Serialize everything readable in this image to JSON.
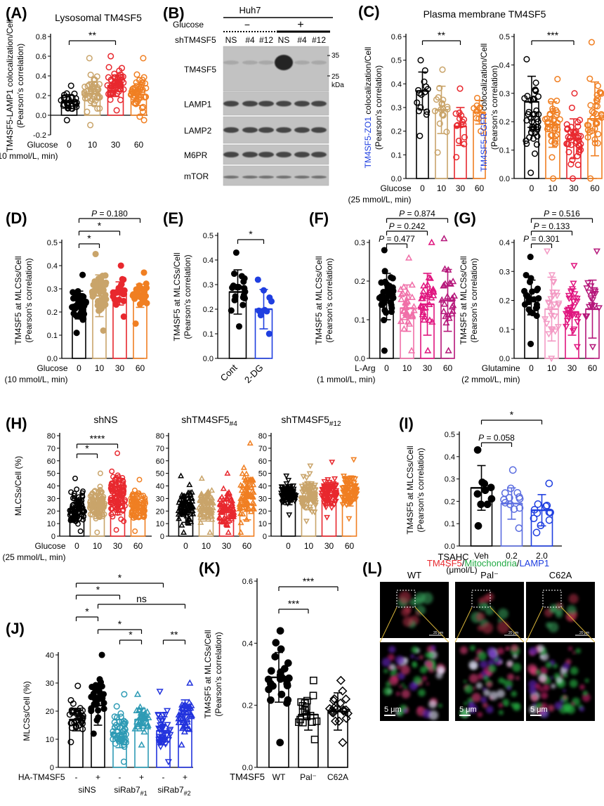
{
  "chart_data": [
    {
      "id": "A",
      "type": "bar",
      "panel_label": "(A)",
      "title": "Lysosomal TM4SF5",
      "ylabel": [
        "TM4SF5-LAMP1 colocalization/Cell",
        "(Pearson's correlation)"
      ],
      "ylim": [
        -0.2,
        0.8
      ],
      "yticks": [
        -0.2,
        0.0,
        0.2,
        0.4,
        0.6,
        0.8
      ],
      "xprefix": [
        "Glucose",
        "(10 mmol/L, min)"
      ],
      "categories": [
        "0",
        "10",
        "30",
        "60"
      ],
      "values": [
        0.14,
        0.22,
        0.3,
        0.21
      ],
      "errors": [
        0.07,
        0.12,
        0.11,
        0.11
      ],
      "colors": [
        "#000000",
        "#c9a46a",
        "#e8282e",
        "#f07f22"
      ],
      "markers": [
        "circle",
        "circle",
        "circle",
        "circle"
      ],
      "fill": "none",
      "point_min": [
        -0.05,
        -0.1,
        0.05,
        -0.05
      ],
      "point_max": [
        0.3,
        0.58,
        0.6,
        0.58
      ],
      "n_points": [
        30,
        45,
        55,
        45
      ],
      "sig": [
        {
          "a": 1,
          "b": 3,
          "text": "**"
        }
      ]
    },
    {
      "id": "C1",
      "type": "bar",
      "panel_label": "(C)",
      "title": "Plasma membrane TM4SF5",
      "ylabel_color": "TM4SF5-ZO1",
      "ylabel_rest": " colocalization/Cell",
      "ylabel2": "(Pearson's correlation)",
      "ylim": [
        0.0,
        0.6
      ],
      "yticks": [
        0.0,
        0.1,
        0.2,
        0.3,
        0.4,
        0.5,
        0.6
      ],
      "xprefix": [
        "Glucose",
        "(25 mmol/L, min)"
      ],
      "categories": [
        "0",
        "10",
        "30",
        "60"
      ],
      "values": [
        0.37,
        0.29,
        0.22,
        0.28
      ],
      "errors": [
        0.08,
        0.1,
        0.08,
        0.05
      ],
      "colors": [
        "#000000",
        "#c9a46a",
        "#e8282e",
        "#f07f22"
      ],
      "markers": [
        "circle",
        "circle",
        "circle",
        "circle"
      ],
      "fill": "none",
      "point_min": [
        0.18,
        0.11,
        0.09,
        0.2
      ],
      "point_max": [
        0.5,
        0.46,
        0.38,
        0.34
      ],
      "n_points": [
        15,
        18,
        15,
        10
      ],
      "sig": [
        {
          "a": 1,
          "b": 3,
          "text": "**"
        }
      ]
    },
    {
      "id": "C2",
      "type": "bar",
      "ylabel_color": "TM4SF5-EGFR",
      "ylabel_rest": " colocalization/Cell",
      "ylabel2": "(Pearson's correlation)",
      "ylim": [
        0.0,
        0.5
      ],
      "yticks": [
        0.0,
        0.1,
        0.2,
        0.3,
        0.4,
        0.5
      ],
      "categories": [
        "0",
        "10",
        "30",
        "60"
      ],
      "values": [
        0.27,
        0.19,
        0.14,
        0.21
      ],
      "errors": [
        0.09,
        0.08,
        0.07,
        0.13
      ],
      "colors": [
        "#000000",
        "#f07f22",
        "#e8282e",
        "#f07f22"
      ],
      "markers": [
        "circle",
        "circle",
        "circle",
        "circle"
      ],
      "fill": "none",
      "point_min": [
        0.02,
        0.0,
        0.0,
        0.0
      ],
      "point_max": [
        0.42,
        0.35,
        0.3,
        0.48
      ],
      "n_points": [
        40,
        35,
        40,
        35
      ],
      "sig": [
        {
          "a": 1,
          "b": 3,
          "text": "***"
        }
      ]
    },
    {
      "id": "D",
      "type": "bar",
      "panel_label": "(D)",
      "ylabel": [
        "TM4SF5 at MLCSs/Cell",
        "(Pearson's correlation)"
      ],
      "ylim": [
        0.0,
        0.5
      ],
      "yticks": [
        0.0,
        0.1,
        0.2,
        0.3,
        0.4,
        0.5
      ],
      "xprefix": [
        "Glucose",
        "(10 mmol/L, min)"
      ],
      "categories": [
        "0",
        "10",
        "30",
        "60"
      ],
      "values": [
        0.23,
        0.27,
        0.28,
        0.27
      ],
      "errors": [
        0.06,
        0.09,
        0.05,
        0.05
      ],
      "colors": [
        "#000000",
        "#c9a46a",
        "#e8282e",
        "#f07f22"
      ],
      "markers": [
        "dot",
        "dot",
        "dot",
        "dot"
      ],
      "fill": "solid",
      "point_min": [
        0.11,
        0.12,
        0.18,
        0.15
      ],
      "point_max": [
        0.36,
        0.45,
        0.4,
        0.37
      ],
      "n_points": [
        45,
        40,
        22,
        30
      ],
      "sig": [
        {
          "a": 1,
          "b": 2,
          "text": "*"
        },
        {
          "a": 1,
          "b": 3,
          "text": "*"
        },
        {
          "a": 1,
          "b": 4,
          "text": "P = 0.180"
        }
      ]
    },
    {
      "id": "E",
      "type": "bar",
      "panel_label": "(E)",
      "ylabel": [
        "TM4SF5 at MLCSs/Cell",
        "(Pearson's correlation)"
      ],
      "ylim": [
        0.0,
        0.5
      ],
      "yticks": [
        0.0,
        0.1,
        0.2,
        0.3,
        0.4,
        0.5
      ],
      "categories": [
        "Cont",
        "2-DG"
      ],
      "rotate_ticks": true,
      "values": [
        0.27,
        0.2
      ],
      "errors": [
        0.09,
        0.08
      ],
      "colors": [
        "#000000",
        "#1f3fe0"
      ],
      "markers": [
        "dot",
        "dot"
      ],
      "fill": "solid",
      "point_min": [
        0.13,
        0.1
      ],
      "point_max": [
        0.43,
        0.32
      ],
      "n_points": [
        20,
        10
      ],
      "sig": [
        {
          "a": 1,
          "b": 2,
          "text": "*"
        }
      ]
    },
    {
      "id": "F",
      "type": "bar",
      "panel_label": "(F)",
      "ylabel": [
        "TM4SF5 at MLCSs/Cell",
        "(Pearson's correlation)"
      ],
      "ylim": [
        0.0,
        0.3
      ],
      "yticks": [
        0.0,
        0.1,
        0.2,
        0.3
      ],
      "xprefix": [
        "L-Arg",
        "(1 mmol/L, min)"
      ],
      "categories": [
        "0",
        "10",
        "30",
        "60"
      ],
      "values": [
        0.16,
        0.13,
        0.14,
        0.15
      ],
      "errors": [
        0.06,
        0.06,
        0.08,
        0.08
      ],
      "colors": [
        "#000000",
        "#f06fa8",
        "#e0157f",
        "#b5177a"
      ],
      "markers": [
        "dot",
        "triangle",
        "triangle",
        "triangle"
      ],
      "fill": "mixed",
      "point_min": [
        0.02,
        0.02,
        0.02,
        0.02
      ],
      "point_max": [
        0.28,
        0.26,
        0.3,
        0.31
      ],
      "n_points": [
        40,
        35,
        30,
        25
      ],
      "sig": [
        {
          "a": 1,
          "b": 2,
          "text": "P = 0.477"
        },
        {
          "a": 1,
          "b": 3,
          "text": "P = 0.242"
        },
        {
          "a": 1,
          "b": 4,
          "text": "P = 0.874"
        }
      ]
    },
    {
      "id": "G",
      "type": "bar",
      "panel_label": "(G)",
      "ylabel": [
        "TM4SF5 at MLCSs/Cell",
        "(Pearson's correlation)"
      ],
      "ylim": [
        0.0,
        0.4
      ],
      "yticks": [
        0.0,
        0.1,
        0.2,
        0.3,
        0.4
      ],
      "xprefix": [
        "Glutamine",
        "(2 mmol/L, min)"
      ],
      "categories": [
        "0",
        "10",
        "30",
        "60"
      ],
      "values": [
        0.21,
        0.17,
        0.16,
        0.17
      ],
      "errors": [
        0.06,
        0.11,
        0.08,
        0.1
      ],
      "colors": [
        "#000000",
        "#f39ac4",
        "#e0157f",
        "#b5177a"
      ],
      "markers": [
        "dot",
        "dtriangle",
        "dtriangle",
        "dtriangle"
      ],
      "fill": "mixed",
      "point_min": [
        0.05,
        0.0,
        0.04,
        0.04
      ],
      "point_max": [
        0.35,
        0.37,
        0.32,
        0.37
      ],
      "n_points": [
        25,
        25,
        30,
        20
      ],
      "sig": [
        {
          "a": 1,
          "b": 2,
          "text": "P = 0.301"
        },
        {
          "a": 1,
          "b": 3,
          "text": "P = 0.133"
        },
        {
          "a": 1,
          "b": 4,
          "text": "P = 0.516"
        }
      ]
    },
    {
      "id": "H1",
      "type": "bar",
      "panel_label": "(H)",
      "title": "shNS",
      "ylabel": [
        "MLCSs/Cell (%)"
      ],
      "ylim": [
        0,
        80
      ],
      "yticks": [
        0,
        10,
        20,
        30,
        40,
        50,
        60,
        70,
        80
      ],
      "xprefix": [
        "Glucose",
        "(25 mmol/L, min)"
      ],
      "categories": [
        "0",
        "10",
        "30",
        "60"
      ],
      "values": [
        21,
        24,
        28,
        24
      ],
      "errors": [
        9,
        10,
        11,
        10
      ],
      "colors": [
        "#000000",
        "#c9a46a",
        "#e8282e",
        "#f07f22"
      ],
      "markers": [
        "circle",
        "circle",
        "circle",
        "circle"
      ],
      "fill": "dense",
      "point_min": [
        4,
        3,
        5,
        4
      ],
      "point_max": [
        46,
        50,
        66,
        45
      ],
      "n_points": [
        90,
        110,
        110,
        90
      ],
      "sig": [
        {
          "a": 1,
          "b": 2,
          "text": "*"
        },
        {
          "a": 1,
          "b": 3,
          "text": "****"
        }
      ]
    },
    {
      "id": "H2",
      "type": "bar",
      "title": "shTM4SF5",
      "title_sub": "#4",
      "ylim": [
        0,
        80
      ],
      "yticks": [
        0,
        10,
        20,
        30,
        40,
        50,
        60,
        70,
        80
      ],
      "categories": [
        "0",
        "10",
        "30",
        "60"
      ],
      "values": [
        21,
        22,
        19,
        25
      ],
      "errors": [
        10,
        10,
        9,
        12
      ],
      "colors": [
        "#000000",
        "#c9a46a",
        "#e8282e",
        "#f07f22"
      ],
      "markers": [
        "triangle",
        "triangle",
        "triangle",
        "triangle"
      ],
      "fill": "dense",
      "point_min": [
        3,
        3,
        3,
        3
      ],
      "point_max": [
        48,
        46,
        50,
        74
      ],
      "n_points": [
        80,
        80,
        80,
        80
      ],
      "sig": []
    },
    {
      "id": "H3",
      "type": "bar",
      "title": "shTM4SF5",
      "title_sub": "#12",
      "ylim": [
        0,
        80
      ],
      "yticks": [
        0,
        10,
        20,
        30,
        40,
        50,
        60,
        70,
        80
      ],
      "categories": [
        "0",
        "10",
        "30",
        "60"
      ],
      "values": [
        32,
        30,
        33,
        32
      ],
      "errors": [
        7,
        9,
        8,
        8
      ],
      "colors": [
        "#000000",
        "#c9a46a",
        "#e8282e",
        "#f07f22"
      ],
      "markers": [
        "dtriangle",
        "dtriangle",
        "dtriangle",
        "dtriangle"
      ],
      "fill": "dense",
      "point_min": [
        17,
        12,
        15,
        14
      ],
      "point_max": [
        48,
        56,
        59,
        61
      ],
      "n_points": [
        90,
        90,
        90,
        90
      ],
      "sig": []
    },
    {
      "id": "I",
      "type": "bar",
      "panel_label": "(I)",
      "ylabel": [
        "TM4SF5 at MLCSs/Cell",
        "(Pearson's correlation)"
      ],
      "ylim": [
        0.0,
        0.5
      ],
      "yticks": [
        0.0,
        0.1,
        0.2,
        0.3,
        0.4,
        0.5
      ],
      "xprefix": [
        "TSAHC",
        "(μmol/L)"
      ],
      "categories": [
        "Veh",
        "0.2",
        "2.0"
      ],
      "values": [
        0.26,
        0.19,
        0.16
      ],
      "errors": [
        0.1,
        0.07,
        0.07
      ],
      "colors": [
        "#000000",
        "#5b6de0",
        "#1f3fe0"
      ],
      "markers": [
        "dot",
        "circle",
        "circle"
      ],
      "fill": "mixed",
      "point_min": [
        0.09,
        0.08,
        0.06
      ],
      "point_max": [
        0.43,
        0.34,
        0.28
      ],
      "n_points": [
        10,
        13,
        12
      ],
      "sig": [
        {
          "a": 1,
          "b": 2,
          "text": "P = 0.058"
        },
        {
          "a": 1,
          "b": 3,
          "text": "*"
        }
      ]
    },
    {
      "id": "J",
      "type": "bar",
      "panel_label": "(J)",
      "ylabel": [
        "MLCSs/Cell (%)"
      ],
      "ylim": [
        0,
        40
      ],
      "yticks": [
        0,
        10,
        20,
        30,
        40
      ],
      "categories": [
        "-",
        "+",
        "-",
        "+",
        "-",
        "+"
      ],
      "xprefix": [
        "HA-TM4SF5"
      ],
      "groups": [
        "siNS",
        "siRab7",
        "siRab7"
      ],
      "group_subs": [
        "",
        "#1",
        "#2"
      ],
      "values": [
        17,
        22,
        12,
        17,
        13,
        19
      ],
      "errors": [
        4,
        7,
        5,
        4,
        5,
        5
      ],
      "colors": [
        "#000000",
        "#000000",
        "#2e9bb5",
        "#2e9bb5",
        "#2233dd",
        "#2233dd"
      ],
      "markers": [
        "circle",
        "dot",
        "circle",
        "triangle",
        "dtriangle",
        "triangle"
      ],
      "fill": "mixed",
      "point_min": [
        9,
        12,
        2,
        8,
        2,
        8
      ],
      "point_max": [
        29,
        40,
        26,
        26,
        27,
        30
      ],
      "n_points": [
        35,
        30,
        50,
        40,
        40,
        40
      ],
      "sig": [
        {
          "a": 1,
          "b": 5,
          "text": "*"
        },
        {
          "a": 1,
          "b": 3,
          "text": "*"
        },
        {
          "a": 2,
          "b": 6,
          "text": "ns"
        },
        {
          "a": 1,
          "b": 2,
          "text": "*"
        },
        {
          "a": 2,
          "b": 4,
          "text": "*"
        },
        {
          "a": 3,
          "b": 4,
          "text": "*"
        },
        {
          "a": 5,
          "b": 6,
          "text": "**"
        }
      ]
    },
    {
      "id": "K",
      "type": "bar",
      "panel_label": "(K)",
      "ylabel": [
        "TM4SF5 at MLCSs/Cell",
        "(Pearson's correlation)"
      ],
      "ylim": [
        0.0,
        0.6
      ],
      "yticks": [
        0.0,
        0.2,
        0.4,
        0.6
      ],
      "xprefix": [
        "TM4SF5"
      ],
      "categories": [
        "WT",
        "Pal⁻",
        "C62A"
      ],
      "values": [
        0.29,
        0.17,
        0.18
      ],
      "errors": [
        0.08,
        0.05,
        0.06
      ],
      "colors": [
        "#000000",
        "#000000",
        "#000000"
      ],
      "markers": [
        "dot",
        "square",
        "diamond"
      ],
      "fill": "mixed",
      "point_min": [
        0.08,
        0.09,
        0.08
      ],
      "point_max": [
        0.44,
        0.28,
        0.28
      ],
      "n_points": [
        25,
        18,
        20
      ],
      "sig": [
        {
          "a": 1,
          "b": 2,
          "text": "***"
        },
        {
          "a": 1,
          "b": 3,
          "text": "***"
        }
      ]
    }
  ],
  "blot": {
    "panel_label": "(B)",
    "cell_line": "Huh7",
    "glucose_label": "Glucose",
    "glucose_minus": "−",
    "glucose_plus": "+",
    "sh_label": "shTM4SF5",
    "lanes": [
      "NS",
      "#4",
      "#12",
      "NS",
      "#4",
      "#12"
    ],
    "rows": [
      "TM4SF5",
      "LAMP1",
      "LAMP2",
      "M6PR",
      "mTOR"
    ],
    "marker_35": "35",
    "marker_25": "25",
    "marker_unit": "kDa"
  },
  "micrographs": {
    "panel_label": "(L)",
    "title_parts": [
      {
        "text": "TM4SF5",
        "color": "#e8282e"
      },
      {
        "text": "/",
        "color": "#000000"
      },
      {
        "text": "Mitochondria",
        "color": "#22aa44"
      },
      {
        "text": "/",
        "color": "#000000"
      },
      {
        "text": "LAMP1",
        "color": "#1f3fe0"
      }
    ],
    "columns": [
      "WT",
      "Pal⁻",
      "C62A"
    ],
    "scale_bar": "5 μm",
    "inset_scale": "20 μm"
  }
}
